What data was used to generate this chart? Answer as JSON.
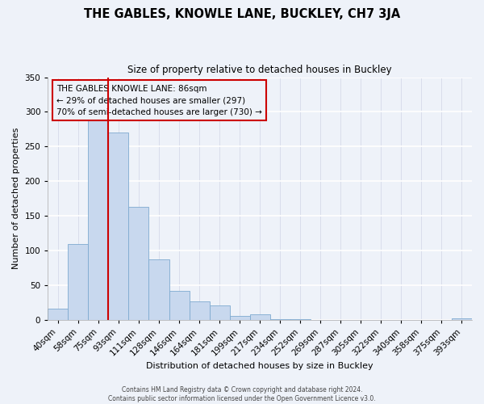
{
  "title": "THE GABLES, KNOWLE LANE, BUCKLEY, CH7 3JA",
  "subtitle": "Size of property relative to detached houses in Buckley",
  "xlabel": "Distribution of detached houses by size in Buckley",
  "ylabel": "Number of detached properties",
  "bin_labels": [
    "40sqm",
    "58sqm",
    "75sqm",
    "93sqm",
    "111sqm",
    "128sqm",
    "146sqm",
    "164sqm",
    "181sqm",
    "199sqm",
    "217sqm",
    "234sqm",
    "252sqm",
    "269sqm",
    "287sqm",
    "305sqm",
    "322sqm",
    "340sqm",
    "358sqm",
    "375sqm",
    "393sqm"
  ],
  "bar_heights": [
    16,
    110,
    295,
    270,
    163,
    87,
    42,
    27,
    21,
    6,
    8,
    1,
    1,
    0,
    0,
    0,
    0,
    0,
    0,
    0,
    2
  ],
  "bar_color": "#c8d8ee",
  "bar_edge_color": "#7eaad0",
  "vline_color": "#cc0000",
  "ylim": [
    0,
    350
  ],
  "yticks": [
    0,
    50,
    100,
    150,
    200,
    250,
    300,
    350
  ],
  "annotation_text": "THE GABLES KNOWLE LANE: 86sqm\n← 29% of detached houses are smaller (297)\n70% of semi-detached houses are larger (730) →",
  "annotation_box_edgecolor": "#cc0000",
  "footer_line1": "Contains HM Land Registry data © Crown copyright and database right 2024.",
  "footer_line2": "Contains public sector information licensed under the Open Government Licence v3.0.",
  "background_color": "#eef2f9",
  "grid_color": "#d8dce8",
  "title_fontsize": 10.5,
  "subtitle_fontsize": 8.5,
  "axis_label_fontsize": 8,
  "tick_fontsize": 7.5,
  "footer_fontsize": 5.5
}
